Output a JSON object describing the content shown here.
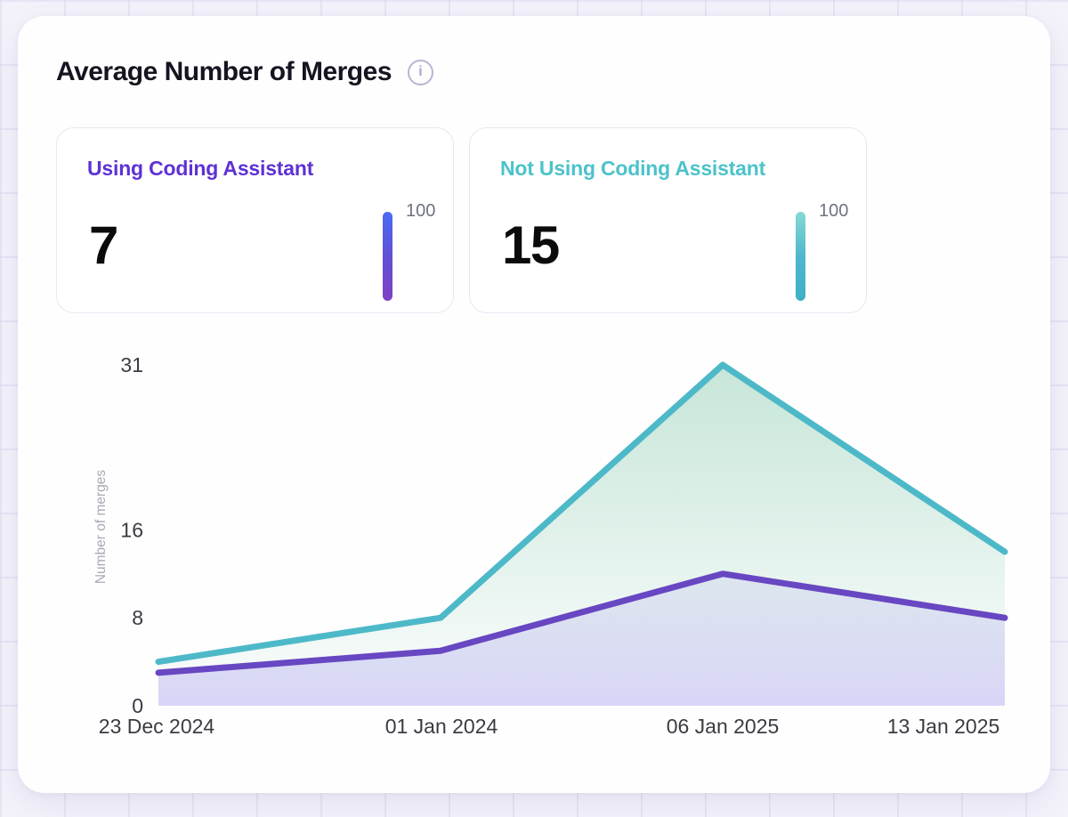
{
  "panel": {
    "title": "Average Number of Merges",
    "info_icon": "i"
  },
  "stat_cards": [
    {
      "label": "Using Coding Assistant",
      "value": "7",
      "scale_max_label": "100",
      "accent_color": "#5e31d5",
      "bar_gradient": [
        "#4a6cf3",
        "#6050d5",
        "#8040c4"
      ]
    },
    {
      "label": "Not Using Coding Assistant",
      "value": "15",
      "scale_max_label": "100",
      "accent_color": "#4cc2ca",
      "bar_gradient": [
        "#86dad5",
        "#4fb7cd",
        "#3eb0c3"
      ]
    }
  ],
  "chart_data": {
    "type": "area",
    "title": "Average Number of Merges",
    "x": [
      "23 Dec 2024",
      "01 Jan 2024",
      "06 Jan 2025",
      "13 Jan 2025"
    ],
    "series": [
      {
        "name": "Not Using Coding Assistant",
        "color": "#4db9c8",
        "fill_top": "rgba(122,196,162,0.42)",
        "fill_bottom": "rgba(122,196,162,0.02)",
        "values": [
          4,
          8,
          31,
          14
        ]
      },
      {
        "name": "Using Coding Assistant",
        "color": "#6847c2",
        "fill_top": "rgba(124,110,228,0.10)",
        "fill_bottom": "rgba(124,110,228,0.28)",
        "values": [
          3,
          5,
          12,
          8
        ]
      }
    ],
    "ylabel": "Number of merges",
    "xlabel": "",
    "yticks": [
      0,
      8,
      16,
      31
    ],
    "ylim": [
      0,
      31
    ],
    "grid": false,
    "legend": "none"
  }
}
